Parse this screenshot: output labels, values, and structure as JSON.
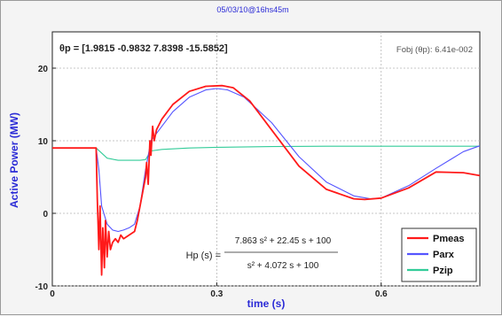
{
  "chart_data": {
    "type": "line",
    "title": "05/03/10@16hs45m",
    "xlabel": "time (s)",
    "ylabel": "Active Power (MW)",
    "xlim": [
      0,
      0.78
    ],
    "ylim": [
      -10,
      25
    ],
    "xticks": [
      0,
      0.3,
      0.6
    ],
    "xtick_labels": [
      "0",
      "0.3",
      "0.6"
    ],
    "yticks": [
      -10,
      0,
      10,
      20
    ],
    "ytick_labels": [
      "-10",
      "0",
      "10",
      "20"
    ],
    "grid": true,
    "legend_position": "bottom-right",
    "annotations": {
      "theta": "θp = [1.9815   -0.9832   7.8398   -15.5852]",
      "fobj": "Fobj (θp): 6.41e-002",
      "hp_lhs": "Hp (s) =",
      "hp_num": "7.863 s² + 22.45 s + 100",
      "hp_den": "s² + 4.072 s + 100"
    },
    "series": [
      {
        "name": "Pmeas",
        "color": "#ff1a1a",
        "x": [
          0,
          0.08,
          0.082,
          0.085,
          0.087,
          0.09,
          0.092,
          0.095,
          0.097,
          0.1,
          0.103,
          0.106,
          0.11,
          0.115,
          0.12,
          0.125,
          0.13,
          0.14,
          0.15,
          0.155,
          0.16,
          0.165,
          0.17,
          0.172,
          0.175,
          0.178,
          0.18,
          0.183,
          0.186,
          0.19,
          0.2,
          0.22,
          0.25,
          0.28,
          0.31,
          0.33,
          0.36,
          0.4,
          0.45,
          0.5,
          0.55,
          0.57,
          0.6,
          0.65,
          0.7,
          0.75,
          0.78
        ],
        "y": [
          9.0,
          9.0,
          2,
          -5,
          1,
          -8.5,
          -2,
          -7.5,
          -1,
          -6,
          -2.5,
          -5,
          -4,
          -3.5,
          -4,
          -3,
          -3.5,
          -3,
          -2.5,
          -1,
          1,
          3,
          5,
          7,
          4,
          10,
          8,
          12,
          10,
          11.5,
          13,
          15,
          16.8,
          17.5,
          17.6,
          17.3,
          15.5,
          11.5,
          6.5,
          3.3,
          2.0,
          1.9,
          2.1,
          3.5,
          5.7,
          5.6,
          5.2
        ]
      },
      {
        "name": "Parx",
        "color": "#5555ff",
        "x": [
          0,
          0.08,
          0.085,
          0.09,
          0.1,
          0.11,
          0.12,
          0.13,
          0.14,
          0.15,
          0.16,
          0.17,
          0.18,
          0.19,
          0.2,
          0.22,
          0.25,
          0.28,
          0.3,
          0.32,
          0.35,
          0.4,
          0.45,
          0.5,
          0.55,
          0.58,
          0.6,
          0.65,
          0.7,
          0.75,
          0.78
        ],
        "y": [
          9.0,
          9.0,
          6,
          1,
          -1.5,
          -2.3,
          -2.5,
          -2.3,
          -2,
          -1.5,
          1,
          6,
          10,
          11,
          12,
          14,
          16,
          17,
          17.2,
          17,
          16,
          12.5,
          7.8,
          4.3,
          2.4,
          2.0,
          2.1,
          3.8,
          6.2,
          8.5,
          9.3
        ]
      },
      {
        "name": "Pzip",
        "color": "#33cc99",
        "x": [
          0,
          0.08,
          0.1,
          0.12,
          0.15,
          0.16,
          0.17,
          0.175,
          0.18,
          0.2,
          0.25,
          0.3,
          0.4,
          0.5,
          0.6,
          0.7,
          0.78
        ],
        "y": [
          9.0,
          9.0,
          7.6,
          7.3,
          7.3,
          7.3,
          7.4,
          8.0,
          8.6,
          8.8,
          9.0,
          9.1,
          9.2,
          9.25,
          9.25,
          9.25,
          9.25
        ]
      }
    ]
  }
}
